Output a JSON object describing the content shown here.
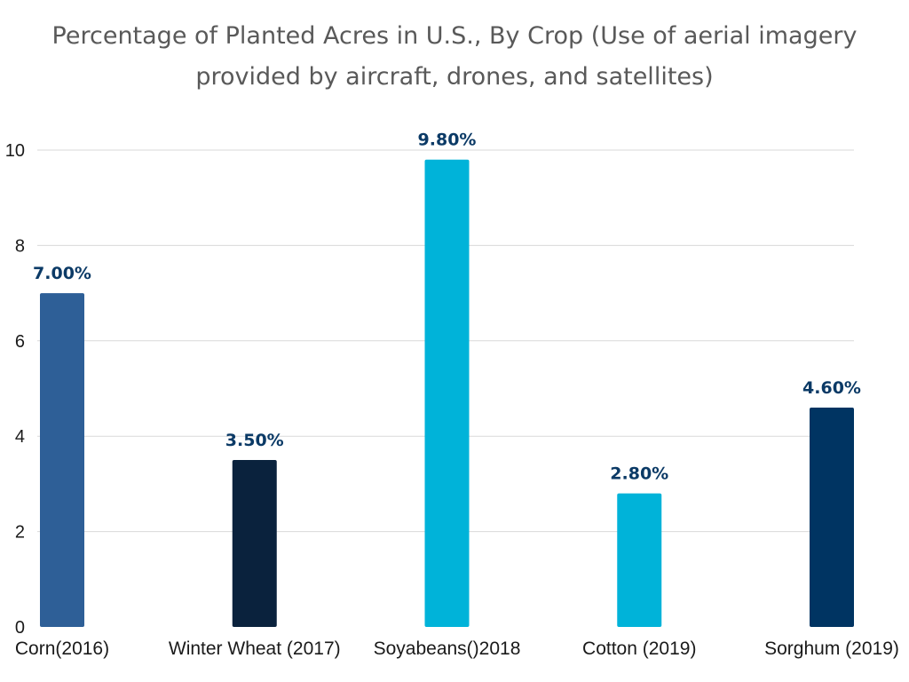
{
  "chart_data": {
    "type": "bar",
    "title_line1": "Percentage of Planted Acres in U.S., By Crop (Use of aerial imagery",
    "title_line2": "provided by aircraft, drones, and satellites)",
    "categories": [
      "Corn(2016)",
      "Winter Wheat (2017)",
      "Soyabeans()2018",
      "Cotton (2019)",
      "Sorghum (2019)"
    ],
    "values": [
      7.0,
      3.5,
      9.8,
      2.8,
      4.6
    ],
    "data_labels": [
      "7.00%",
      "3.50%",
      "9.80%",
      "2.80%",
      "4.60%"
    ],
    "colors": [
      "#2e5f97",
      "#0a223d",
      "#00b3d9",
      "#00b3d9",
      "#003462"
    ],
    "ylim": [
      0,
      10
    ],
    "yticks": [
      0,
      2,
      4,
      6,
      8,
      10
    ],
    "xlabel": "",
    "ylabel": "",
    "grid": true
  }
}
